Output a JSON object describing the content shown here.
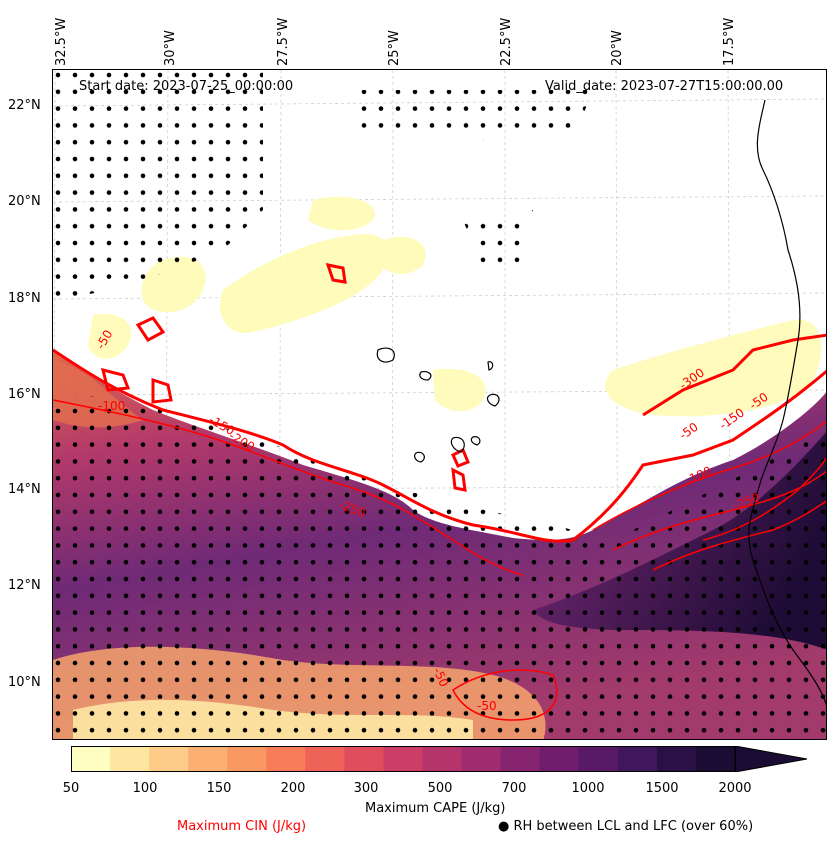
{
  "map": {
    "start_date": "Start date: 2023-07-25_00:00:00",
    "valid_date": "Valid_date: 2023-07-27T15:00:00.00",
    "lon_labels": [
      "32.5°W",
      "30°W",
      "27.5°W",
      "25°W",
      "22.5°W",
      "20°W",
      "17.5°W"
    ],
    "lat_labels": [
      "22°N",
      "20°N",
      "18°N",
      "16°N",
      "14°N",
      "12°N",
      "10°N"
    ],
    "cin_contour_labels": [
      "-50",
      "-100",
      "-150",
      "-200",
      "-250",
      "-300",
      "-50",
      "-150",
      "-50",
      "-250",
      "-100",
      "-50",
      "-50"
    ]
  },
  "colorbar": {
    "title": "Maximum CAPE (J/kg)",
    "tick_labels": [
      "50",
      "100",
      "150",
      "200",
      "300",
      "500",
      "700",
      "1000",
      "1500",
      "2000"
    ],
    "colors": [
      "#fefec2",
      "#fde6a0",
      "#fdcc88",
      "#fcb074",
      "#fa9864",
      "#f67d58",
      "#ee6358",
      "#e04e5e",
      "#cc3e66",
      "#b5346c",
      "#9e2c6f",
      "#872470",
      "#701d6e",
      "#581a67",
      "#40165c",
      "#2a1046",
      "#1b0c34"
    ],
    "extend_color": "#1b0c34"
  },
  "legend": {
    "cin_label": "Maximum CIN (J/kg)",
    "cin_color": "#ff0000",
    "rh_label": "● RH between LCL and LFC (over 60%)"
  }
}
